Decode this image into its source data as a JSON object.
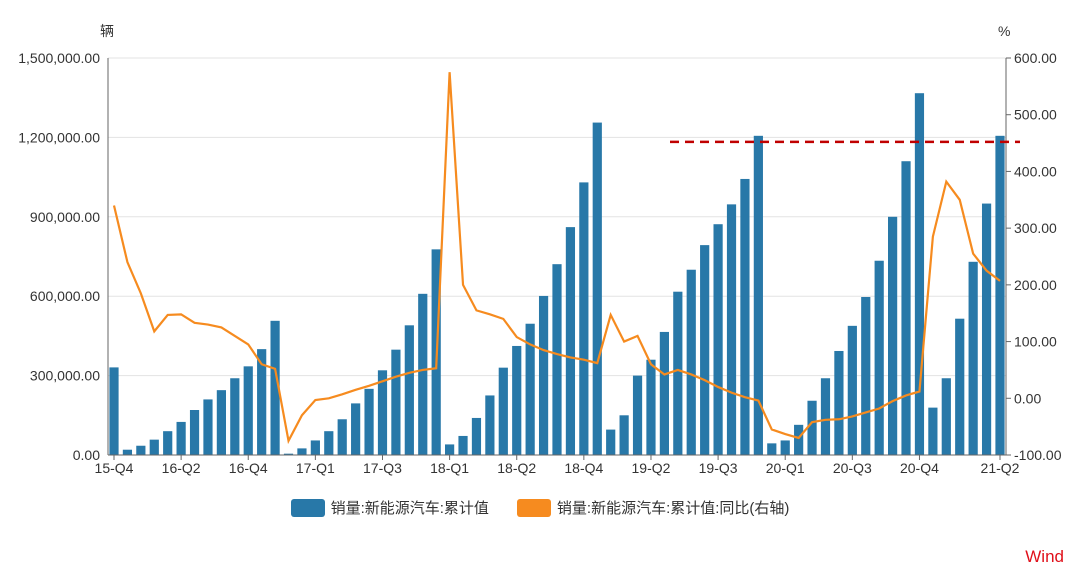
{
  "chart_data": {
    "type": "bar+line",
    "left_unit": "辆",
    "right_unit": "%",
    "left_ylim": [
      0,
      1500000
    ],
    "right_ylim": [
      -100,
      600
    ],
    "left_ticks": [
      "0.00",
      "300,000.00",
      "600,000.00",
      "900,000.00",
      "1,200,000.00",
      "1,500,000.00"
    ],
    "right_ticks": [
      "-100.00",
      "0.00",
      "100.00",
      "200.00",
      "300.00",
      "400.00",
      "500.00",
      "600.00"
    ],
    "x_tick_labels": [
      {
        "index": 0,
        "label": "15-Q4"
      },
      {
        "index": 5,
        "label": "16-Q2"
      },
      {
        "index": 10,
        "label": "16-Q4"
      },
      {
        "index": 15,
        "label": "17-Q1"
      },
      {
        "index": 20,
        "label": "17-Q3"
      },
      {
        "index": 25,
        "label": "18-Q1"
      },
      {
        "index": 30,
        "label": "18-Q2"
      },
      {
        "index": 35,
        "label": "18-Q4"
      },
      {
        "index": 40,
        "label": "19-Q2"
      },
      {
        "index": 45,
        "label": "19-Q3"
      },
      {
        "index": 50,
        "label": "20-Q1"
      },
      {
        "index": 55,
        "label": "20-Q3"
      },
      {
        "index": 60,
        "label": "20-Q4"
      },
      {
        "index": 66,
        "label": "21-Q2"
      }
    ],
    "series": [
      {
        "name": "销量:新能源汽车:累计值",
        "axis": "left",
        "type": "bar",
        "color": "#2878a8",
        "values": [
          331000,
          20000,
          35000,
          58000,
          90000,
          125000,
          170000,
          210000,
          245000,
          290000,
          335000,
          400000,
          507000,
          5000,
          25000,
          55000,
          90000,
          135000,
          195000,
          250000,
          320000,
          398000,
          490000,
          609000,
          777000,
          40000,
          72000,
          140000,
          225000,
          330000,
          412000,
          496000,
          601000,
          721000,
          861000,
          1030000,
          1256000,
          96000,
          150000,
          300000,
          360000,
          465000,
          617000,
          700000,
          793000,
          872000,
          947000,
          1043000,
          1206000,
          44000,
          55000,
          114000,
          205000,
          290000,
          393000,
          488000,
          597000,
          734000,
          900000,
          1110000,
          1367000,
          179000,
          290000,
          515000,
          730000,
          950000,
          1206000
        ]
      },
      {
        "name": "销量:新能源汽车:累计值:同比(右轴)",
        "axis": "right",
        "type": "line",
        "color": "#f68b1f",
        "values": [
          340,
          240,
          185,
          118,
          147,
          148,
          133,
          130,
          125,
          110,
          95,
          60,
          52,
          -75,
          -30,
          -3,
          0,
          7,
          15,
          22,
          30,
          38,
          45,
          50,
          53,
          575,
          200,
          155,
          148,
          140,
          108,
          95,
          85,
          78,
          72,
          68,
          62,
          147,
          100,
          110,
          60,
          42,
          50,
          42,
          32,
          20,
          10,
          2,
          -4,
          -55,
          -63,
          -70,
          -42,
          -38,
          -37,
          -32,
          -25,
          -18,
          -5,
          5,
          12,
          285,
          382,
          350,
          255,
          225,
          207
        ]
      }
    ],
    "annotations": [
      {
        "type": "dashed-hline",
        "axis": "right",
        "value": 452,
        "from_index": 42,
        "to_index": 67,
        "color": "#c00000"
      }
    ],
    "legend_position": "bottom",
    "source": "Wind"
  }
}
